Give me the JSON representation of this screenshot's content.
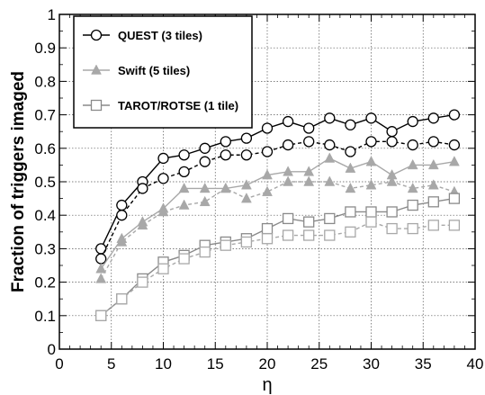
{
  "chart_data": {
    "type": "line",
    "xlabel": "η",
    "ylabel": "Fraction of triggers imaged",
    "xlim": [
      0,
      40
    ],
    "ylim": [
      0,
      1
    ],
    "xticks": [
      0,
      5,
      10,
      15,
      20,
      25,
      30,
      35,
      40
    ],
    "yticks": [
      0,
      0.1,
      0.2,
      0.3,
      0.4,
      0.5,
      0.6,
      0.7,
      0.8,
      0.9,
      1
    ],
    "ytick_labels": [
      "0",
      "0.1",
      "0.2",
      "0.3",
      "0.4",
      "0.5",
      "0.6",
      "0.7",
      "0.8",
      "0.9",
      "1"
    ],
    "grid": true,
    "legend_position": "top-left",
    "x": [
      4,
      6,
      8,
      10,
      12,
      14,
      16,
      18,
      20,
      22,
      24,
      26,
      28,
      30,
      32,
      34,
      36,
      38
    ],
    "series": [
      {
        "name": "QUEST (3 tiles)",
        "color": "#000000",
        "marker": "circle",
        "style": "solid",
        "values": [
          0.3,
          0.43,
          0.5,
          0.57,
          0.58,
          0.6,
          0.62,
          0.63,
          0.66,
          0.68,
          0.66,
          0.69,
          0.67,
          0.69,
          0.65,
          0.68,
          0.69,
          0.7
        ]
      },
      {
        "name": "",
        "color": "#000000",
        "marker": "circle",
        "style": "dashed",
        "values": [
          0.27,
          0.4,
          0.48,
          0.51,
          0.53,
          0.56,
          0.58,
          0.58,
          0.59,
          0.61,
          0.62,
          0.61,
          0.59,
          0.62,
          0.62,
          0.61,
          0.62,
          0.61
        ]
      },
      {
        "name": "Swift (5 tiles)",
        "color": "#a8a8a8",
        "marker": "triangle",
        "style": "solid",
        "values": [
          0.24,
          0.33,
          0.38,
          0.42,
          0.48,
          0.48,
          0.48,
          0.49,
          0.52,
          0.53,
          0.53,
          0.57,
          0.54,
          0.56,
          0.52,
          0.55,
          0.55,
          0.56
        ]
      },
      {
        "name": "",
        "color": "#a8a8a8",
        "marker": "triangle",
        "style": "dashed",
        "values": [
          0.21,
          0.32,
          0.37,
          0.41,
          0.43,
          0.44,
          0.48,
          0.45,
          0.47,
          0.5,
          0.5,
          0.5,
          0.48,
          0.49,
          0.5,
          0.48,
          0.49,
          0.47
        ]
      },
      {
        "name": "TAROT/ROTSE (1 tile)",
        "color": "#8a8a8a",
        "marker": "square",
        "style": "solid",
        "values": [
          0.1,
          0.15,
          0.21,
          0.26,
          0.28,
          0.31,
          0.32,
          0.33,
          0.36,
          0.39,
          0.38,
          0.39,
          0.41,
          0.41,
          0.41,
          0.43,
          0.44,
          0.45
        ]
      },
      {
        "name": "",
        "color": "#a8a8a8",
        "marker": "square",
        "style": "dashed",
        "values": [
          0.1,
          0.15,
          0.2,
          0.24,
          0.27,
          0.29,
          0.31,
          0.32,
          0.33,
          0.34,
          0.34,
          0.34,
          0.35,
          0.38,
          0.36,
          0.36,
          0.37,
          0.37
        ]
      }
    ]
  }
}
